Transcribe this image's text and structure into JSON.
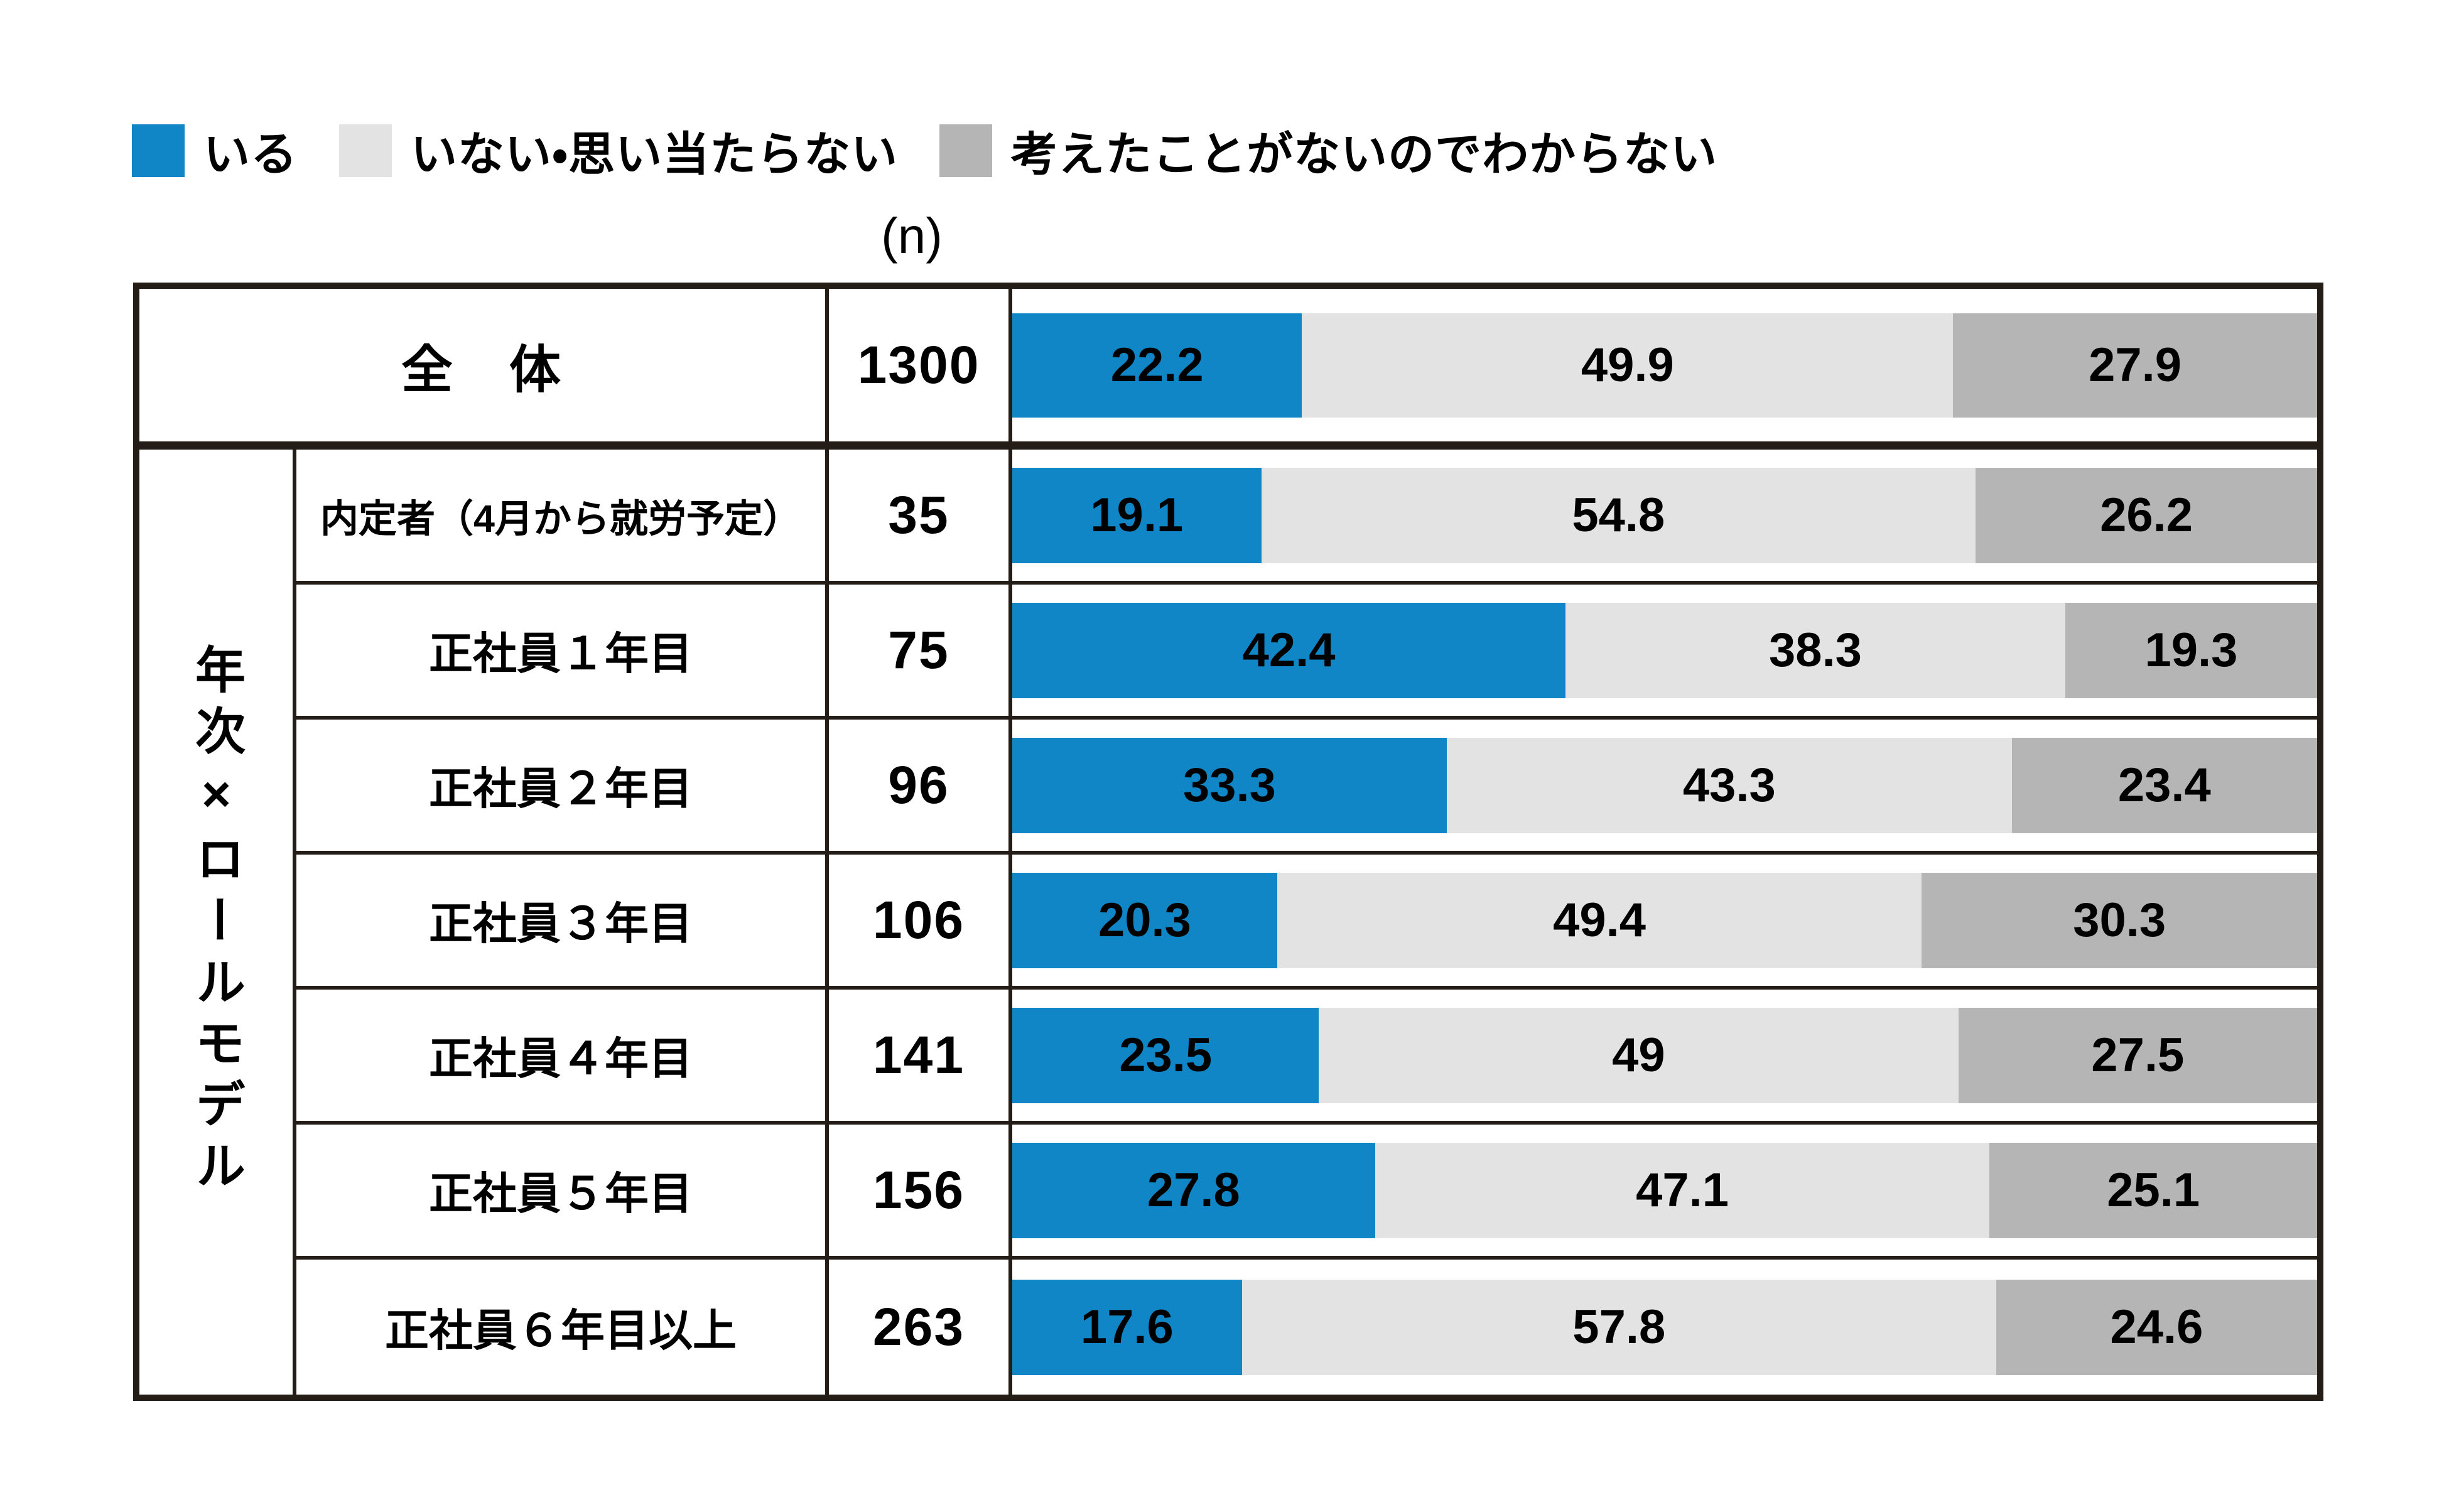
{
  "legend": {
    "items": [
      {
        "label": "いる",
        "color": "#1086c6"
      },
      {
        "label": "いない・思い当たらない",
        "color": "#e3e3e3"
      },
      {
        "label": "考えたことがないのでわからない",
        "color": "#b5b5b5"
      }
    ]
  },
  "n_header": "(n)",
  "overall": {
    "label": "全　体",
    "n": "1300",
    "values": [
      22.2,
      49.9,
      27.9
    ]
  },
  "group": {
    "label": "年次×ロールモデル",
    "rows": [
      {
        "label": "内定者（4月から就労予定）",
        "n": "35",
        "values": [
          19.1,
          54.8,
          26.2
        ]
      },
      {
        "label": "正社員１年目",
        "n": "75",
        "values": [
          42.4,
          38.3,
          19.3
        ]
      },
      {
        "label": "正社員２年目",
        "n": "96",
        "values": [
          33.3,
          43.3,
          23.4
        ]
      },
      {
        "label": "正社員３年目",
        "n": "106",
        "values": [
          20.3,
          49.4,
          30.3
        ]
      },
      {
        "label": "正社員４年目",
        "n": "141",
        "values": [
          23.5,
          49,
          27.5
        ]
      },
      {
        "label": "正社員５年目",
        "n": "156",
        "values": [
          27.8,
          47.1,
          25.1
        ]
      },
      {
        "label": "正社員６年目以上",
        "n": "263",
        "values": [
          17.6,
          57.8,
          24.6
        ]
      }
    ]
  },
  "colors": {
    "segment1": "#1086c6",
    "segment2": "#e3e3e3",
    "segment3": "#b5b5b5",
    "border": "#241c16"
  },
  "chart_data": {
    "type": "bar",
    "orientation": "horizontal-stacked",
    "title": "",
    "xlabel": "",
    "ylabel": "",
    "xlim": [
      0,
      100
    ],
    "legend_position": "top",
    "categories": [
      "全体",
      "内定者（4月から就労予定）",
      "正社員１年目",
      "正社員２年目",
      "正社員３年目",
      "正社員４年目",
      "正社員５年目",
      "正社員６年目以上"
    ],
    "n_values": [
      1300,
      35,
      75,
      96,
      106,
      141,
      156,
      263
    ],
    "series": [
      {
        "name": "いる",
        "color": "#1086c6",
        "values": [
          22.2,
          19.1,
          42.4,
          33.3,
          20.3,
          23.5,
          27.8,
          17.6
        ]
      },
      {
        "name": "いない・思い当たらない",
        "color": "#e3e3e3",
        "values": [
          49.9,
          54.8,
          38.3,
          43.3,
          49.4,
          49,
          47.1,
          57.8
        ]
      },
      {
        "name": "考えたことがないのでわからない",
        "color": "#b5b5b5",
        "values": [
          27.9,
          26.2,
          19.3,
          23.4,
          30.3,
          27.5,
          25.1,
          24.6
        ]
      }
    ]
  }
}
